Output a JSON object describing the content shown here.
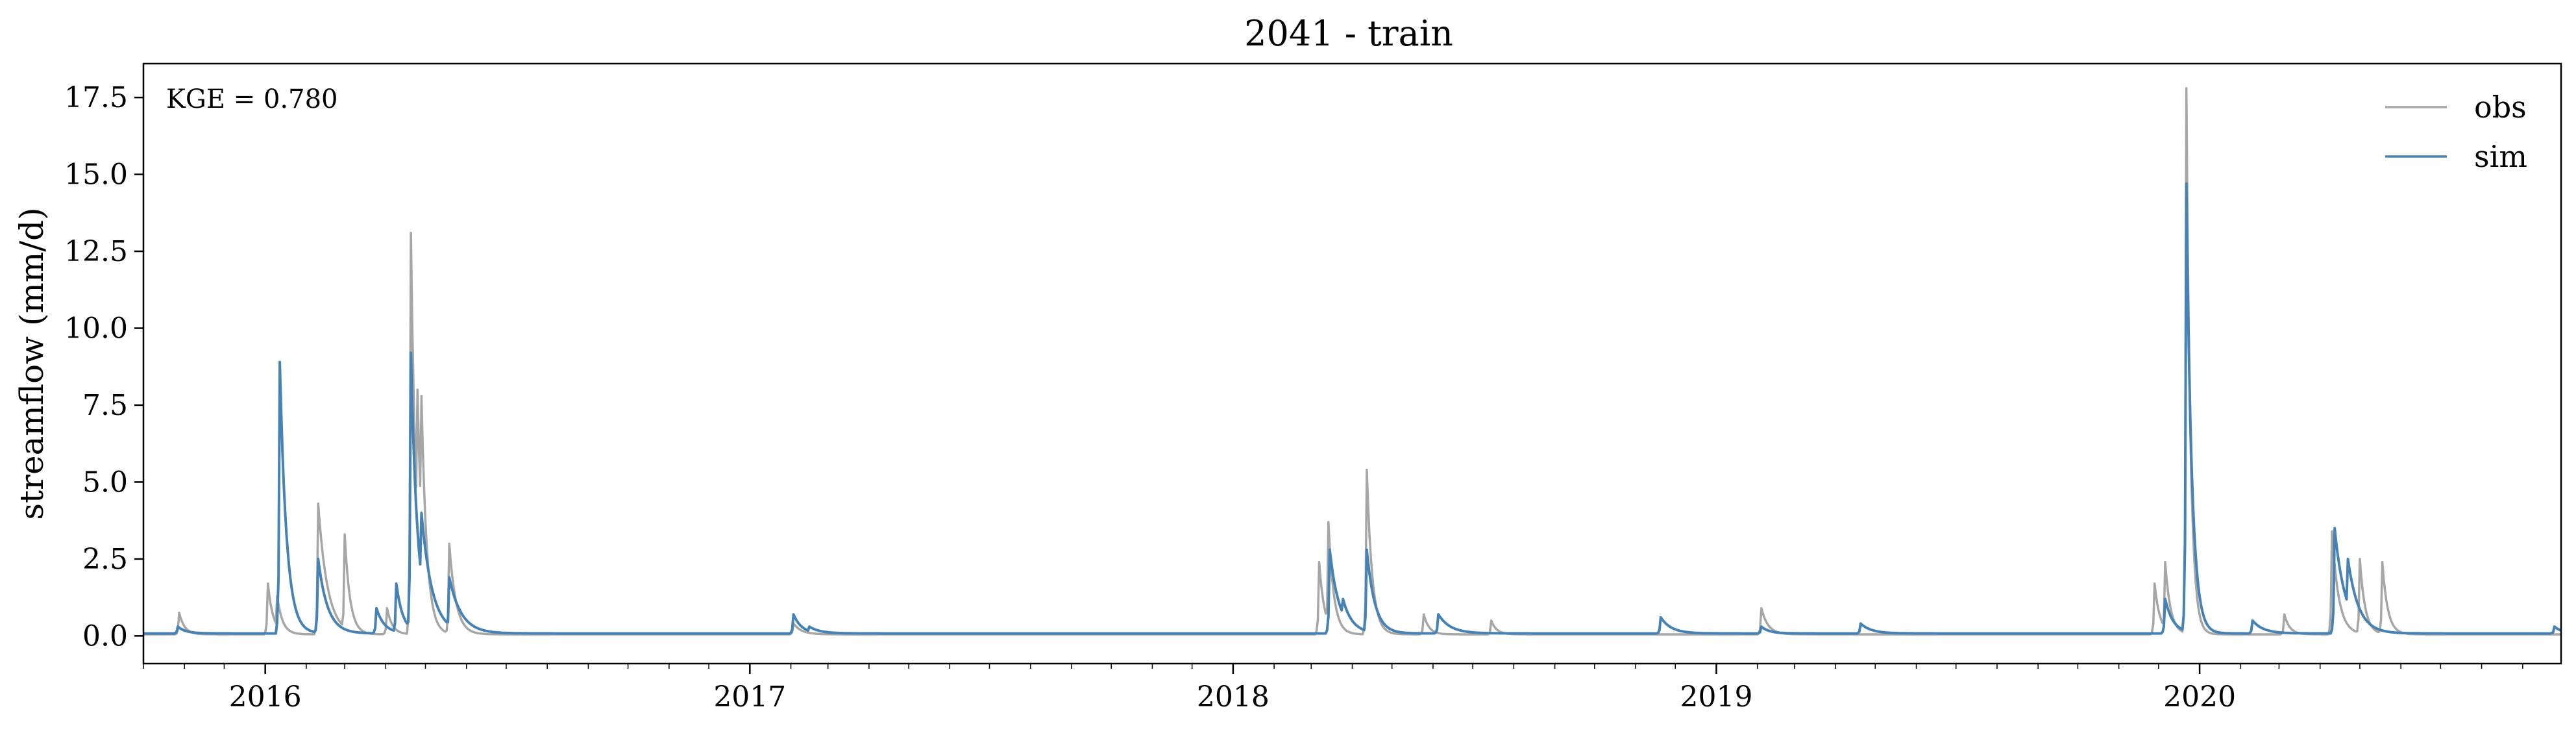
{
  "chart_data": {
    "type": "line",
    "title": "2041 - train",
    "xlabel": "",
    "ylabel": "streamflow (mm/d)",
    "annotation": "KGE = 0.780",
    "x_axis": {
      "kind": "date",
      "range": [
        "2015-10-01",
        "2020-09-30"
      ],
      "tick_labels": [
        "2016",
        "2017",
        "2018",
        "2019",
        "2020"
      ],
      "tick_dates": [
        "2016-01-01",
        "2017-01-01",
        "2018-01-01",
        "2019-01-01",
        "2020-01-01"
      ]
    },
    "y_axis": {
      "range": [
        -0.9,
        18.6
      ],
      "ticks": [
        0.0,
        2.5,
        5.0,
        7.5,
        10.0,
        12.5,
        15.0,
        17.5
      ],
      "tick_labels": [
        "0.0",
        "2.5",
        "5.0",
        "7.5",
        "10.0",
        "12.5",
        "15.0",
        "17.5"
      ]
    },
    "grid": false,
    "legend_position": "top-right",
    "baseflow": {
      "obs": 0.05,
      "sim": 0.08
    },
    "series": [
      {
        "name": "obs",
        "color": "#a6a6a6",
        "peaks": [
          [
            "2015-10-28",
            0.75,
            4
          ],
          [
            "2016-01-03",
            1.7,
            4
          ],
          [
            "2016-01-10",
            1.3,
            4
          ],
          [
            "2016-02-10",
            4.3,
            7
          ],
          [
            "2016-03-01",
            3.3,
            4
          ],
          [
            "2016-04-02",
            0.9,
            4
          ],
          [
            "2016-04-20",
            13.1,
            4
          ],
          [
            "2016-04-25",
            8.0,
            4
          ],
          [
            "2016-04-28",
            7.8,
            4
          ],
          [
            "2016-05-19",
            3.0,
            5
          ],
          [
            "2017-02-03",
            0.4,
            6
          ],
          [
            "2018-03-07",
            2.4,
            4
          ],
          [
            "2018-03-14",
            3.7,
            4
          ],
          [
            "2018-04-12",
            5.4,
            4
          ],
          [
            "2018-05-25",
            0.7,
            4
          ],
          [
            "2018-07-15",
            0.5,
            4
          ],
          [
            "2019-02-04",
            0.9,
            5
          ],
          [
            "2019-11-28",
            1.7,
            4
          ],
          [
            "2019-12-06",
            2.4,
            4
          ],
          [
            "2019-12-22",
            17.8,
            3
          ],
          [
            "2020-03-05",
            0.7,
            4
          ],
          [
            "2020-04-10",
            3.4,
            5
          ],
          [
            "2020-05-01",
            2.5,
            4
          ],
          [
            "2020-05-18",
            2.4,
            4
          ]
        ]
      },
      {
        "name": "sim",
        "color": "#4682b4",
        "peaks": [
          [
            "2015-10-27",
            0.3,
            6
          ],
          [
            "2016-01-12",
            8.9,
            5
          ],
          [
            "2016-02-10",
            2.5,
            7
          ],
          [
            "2016-03-25",
            0.9,
            6
          ],
          [
            "2016-04-09",
            1.7,
            5
          ],
          [
            "2016-04-20",
            9.2,
            5
          ],
          [
            "2016-04-28",
            4.0,
            8
          ],
          [
            "2016-05-19",
            1.9,
            9
          ],
          [
            "2017-02-03",
            0.7,
            6
          ],
          [
            "2017-02-15",
            0.3,
            8
          ],
          [
            "2018-03-15",
            2.8,
            7
          ],
          [
            "2018-03-25",
            1.2,
            7
          ],
          [
            "2018-04-12",
            2.8,
            6
          ],
          [
            "2018-06-05",
            0.7,
            9
          ],
          [
            "2018-11-20",
            0.6,
            8
          ],
          [
            "2019-02-04",
            0.3,
            6
          ],
          [
            "2019-04-20",
            0.4,
            8
          ],
          [
            "2019-12-06",
            1.2,
            6
          ],
          [
            "2019-12-22",
            14.7,
            4
          ],
          [
            "2020-02-10",
            0.5,
            8
          ],
          [
            "2020-04-12",
            3.5,
            8
          ],
          [
            "2020-04-22",
            2.5,
            8
          ],
          [
            "2020-09-25",
            0.3,
            6
          ]
        ]
      }
    ]
  }
}
